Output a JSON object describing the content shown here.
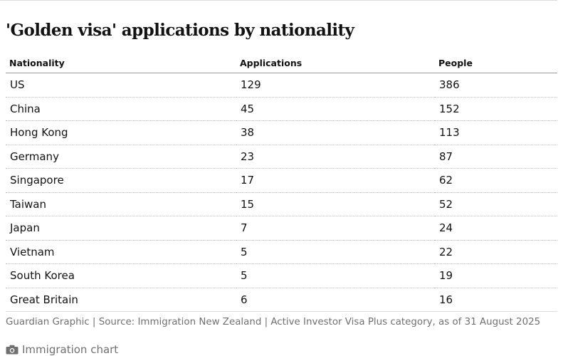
{
  "title": "'Golden visa' applications by nationality",
  "source": "Guardian Graphic | Source: Immigration New Zealand | Active Investor Visa Plus category, as of 31 August 2025",
  "caption": "Immigration chart",
  "caption_icon": "camera-icon",
  "chart_data": {
    "type": "table",
    "title": "'Golden visa' applications by nationality",
    "columns": [
      "Nationality",
      "Applications",
      "People"
    ],
    "rows": [
      [
        "US",
        "129",
        "386"
      ],
      [
        "China",
        "45",
        "152"
      ],
      [
        "Hong Kong",
        "38",
        "113"
      ],
      [
        "Germany",
        "23",
        "87"
      ],
      [
        "Singapore",
        "17",
        "62"
      ],
      [
        "Taiwan",
        "15",
        "52"
      ],
      [
        "Japan",
        "7",
        "24"
      ],
      [
        "Vietnam",
        "5",
        "22"
      ],
      [
        "South Korea",
        "5",
        "19"
      ],
      [
        "Great Britain",
        "6",
        "16"
      ]
    ]
  }
}
